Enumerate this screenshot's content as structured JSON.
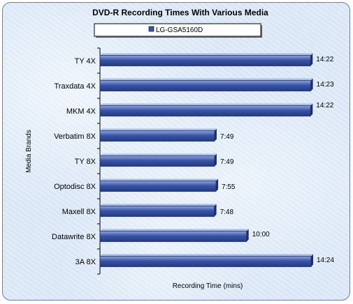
{
  "chart_data": {
    "type": "bar",
    "orientation": "horizontal",
    "title": "DVD-R Recording Times With Various Media",
    "xlabel": "Recording Time (mins)",
    "ylabel": "Media Brands",
    "categories": [
      "TY 4X",
      "Traxdata 4X",
      "MKM 4X",
      "Verbatim 8X",
      "TY 8X",
      "Optodisc 8X",
      "Maxell 8X",
      "Datawrite 8X",
      "3A 8X"
    ],
    "series": [
      {
        "name": "LG-GSA5160D",
        "values": [
          14.367,
          14.383,
          14.367,
          7.817,
          7.817,
          7.917,
          7.8,
          10.0,
          14.4
        ],
        "labels": [
          "14:22",
          "14:23",
          "14:22",
          "7:49",
          "7:49",
          "7:55",
          "7:48",
          "10:00",
          "14:24"
        ]
      }
    ],
    "xlim": [
      0,
      14.4
    ],
    "grid": false,
    "legend_position": "top",
    "colors": {
      "bar_fill": "#3a55a8",
      "bar_highlight": "#8fa6e0",
      "bar_edge": "#1c2e6e",
      "axis": "#000000",
      "background": "#dce9f7"
    }
  }
}
